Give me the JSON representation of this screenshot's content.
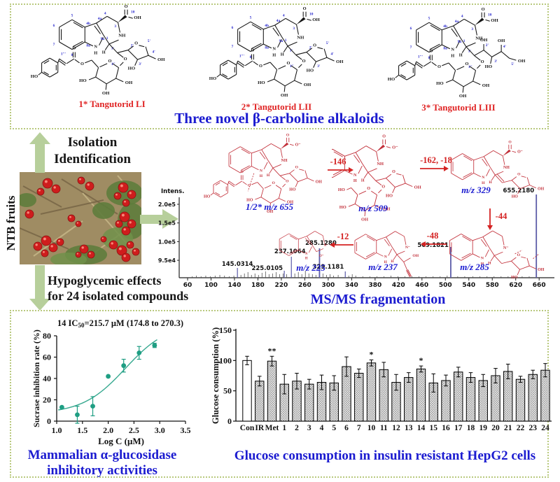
{
  "chem": {
    "o": "O",
    "oh": "OH",
    "ho": "HO",
    "nh": "NH",
    "n": "N",
    "h": "H",
    "o_minus": "O⁻",
    "n_minus": "N⁻",
    "locants": {
      "c5": "5",
      "c6": "6",
      "c7": "7",
      "c8": "8",
      "c8a": "8a",
      "c4b": "4b",
      "c4a": "4a",
      "c9a": "9a",
      "c1": "1",
      "c3": "3",
      "c4": "4",
      "c10": "10",
      "p1": "1'",
      "p2": "2'",
      "p3": "3'",
      "p4": "4'",
      "p5": "5'",
      "s1": "1''",
      "cm1": "1'''"
    }
  },
  "top_panel": {
    "caption": "Three novel β-carboline alkaloids",
    "structures": [
      {
        "label": "1* Tangutorid LI"
      },
      {
        "label": "2* Tangutorid LII"
      },
      {
        "label": "3* Tangutorid LIII"
      }
    ]
  },
  "middle": {
    "ntb_label": "NTB fruits",
    "isolation_line1": "Isolation",
    "isolation_line2": "Identification",
    "hypo_line1": "Hypoglycemic effects",
    "hypo_line2": "for 24 isolated compounds",
    "msms_caption": "MS/MS fragmentation mode",
    "fragment_labels": {
      "f655": "1/2* m/z 655",
      "f509": "m/z 509",
      "f329": "m/z 329",
      "f285": "m/z 285",
      "f237": "m/z 237",
      "f225": "m/z 225"
    },
    "losses": {
      "l146": "-146",
      "l162": "-162, -18",
      "l44": "-44",
      "l48": "-48",
      "l12": "-12"
    }
  },
  "bottom_panel": {
    "left_caption_line1": "Mammalian α-glucosidase",
    "left_caption_line2": "inhibitory activities",
    "right_caption": "Glucose consumption in insulin resistant HepG2 cells"
  },
  "chart_data": [
    {
      "type": "scatter",
      "name": "alpha-glucosidase-inhibition",
      "title_parts": {
        "pre": "14 IC",
        "sub": "50",
        "post": "=215.7 μM (174.8 to 270.3)"
      },
      "xlabel": "Log C (μM)",
      "ylabel": "Sucrase inhibition rate (%)",
      "x": [
        1.1,
        1.4,
        1.7,
        2.0,
        2.3,
        2.6,
        2.9
      ],
      "y": [
        13,
        6,
        14,
        42,
        52,
        64,
        71
      ],
      "yerr": [
        1,
        8,
        9,
        1,
        6,
        6,
        2
      ],
      "xlim": [
        1.0,
        3.5
      ],
      "ylim": [
        0,
        80
      ],
      "xticks": [
        "1.0",
        "1.5",
        "2.0",
        "2.5",
        "3.0",
        "3.5"
      ],
      "yticks": [
        0,
        20,
        40,
        60,
        80
      ],
      "fit": {
        "bottom": 7,
        "top": 92,
        "logIC50": 2.334,
        "hill": 1.05
      },
      "color": "#1f9e83"
    },
    {
      "type": "bar",
      "name": "glucose-consumption",
      "ylabel": "Glucose consumption (%)",
      "ylim": [
        0,
        150
      ],
      "yticks": [
        0,
        50,
        100,
        150
      ],
      "categories": [
        "Con",
        "IR",
        "Met",
        "1",
        "2",
        "3",
        "4",
        "5",
        "6",
        "7",
        "10",
        "11",
        "12",
        "13",
        "14",
        "15",
        "16",
        "17",
        "18",
        "19",
        "20",
        "21",
        "22",
        "23",
        "24"
      ],
      "values": [
        100,
        66,
        99,
        61,
        66,
        61,
        64,
        63,
        90,
        79,
        96,
        85,
        64,
        72,
        86,
        63,
        67,
        81,
        72,
        67,
        75,
        82,
        69,
        77,
        84
      ],
      "errors": [
        7,
        8,
        8,
        16,
        13,
        8,
        12,
        12,
        16,
        7,
        5,
        12,
        13,
        8,
        5,
        15,
        9,
        8,
        8,
        10,
        12,
        12,
        5,
        7,
        11
      ],
      "stars": [
        "",
        "",
        "**",
        "",
        "",
        "",
        "",
        "",
        "",
        "",
        "*",
        "",
        "",
        "",
        "*",
        "",
        "",
        "",
        "",
        "",
        "",
        "",
        "",
        "",
        ""
      ],
      "open_bar_index": 0
    },
    {
      "type": "line",
      "name": "msms-spectrum",
      "ylabel": "Intens.",
      "ytick_labels": [
        "2.0e5",
        "1.5e5",
        "1.0e5",
        "9.5e4"
      ],
      "xticks": [
        60,
        100,
        140,
        180,
        220,
        260,
        300,
        340,
        380,
        420,
        460,
        500,
        540,
        580,
        620,
        660
      ],
      "labeled_peaks": [
        {
          "mz": 145.0314,
          "label": "145.0314",
          "h": 14
        },
        {
          "mz": 225.0105,
          "label": "225.0105",
          "h": 10
        },
        {
          "mz": 237.1064,
          "label": "237.1064",
          "h": 30
        },
        {
          "mz": 285.128,
          "label": "285.1280",
          "h": 42
        },
        {
          "mz": 329.1181,
          "label": "329.1181",
          "h": 9
        },
        {
          "mz": 509.1821,
          "label": "509.1821",
          "h": 44
        },
        {
          "mz": 655.218,
          "label": "655.2180",
          "h": 119
        }
      ],
      "minor_peaks": [
        [
          68,
          2
        ],
        [
          75,
          3
        ],
        [
          83,
          2
        ],
        [
          91,
          3
        ],
        [
          99,
          2
        ],
        [
          107,
          3
        ],
        [
          115,
          4
        ],
        [
          123,
          3
        ],
        [
          131,
          2
        ],
        [
          139,
          3
        ],
        [
          151,
          4
        ],
        [
          157,
          6
        ],
        [
          163,
          8
        ],
        [
          169,
          4
        ],
        [
          175,
          6
        ],
        [
          181,
          4
        ],
        [
          187,
          7
        ],
        [
          193,
          9
        ],
        [
          199,
          5
        ],
        [
          205,
          6
        ],
        [
          211,
          8
        ],
        [
          217,
          5
        ],
        [
          223,
          6
        ],
        [
          229,
          5
        ],
        [
          243,
          6
        ],
        [
          249,
          8
        ],
        [
          255,
          5
        ],
        [
          261,
          10
        ],
        [
          267,
          6
        ],
        [
          273,
          5
        ],
        [
          279,
          4
        ],
        [
          291,
          6
        ],
        [
          297,
          4
        ],
        [
          303,
          5
        ],
        [
          309,
          3
        ],
        [
          317,
          4
        ],
        [
          335,
          3
        ],
        [
          341,
          5
        ],
        [
          347,
          3
        ],
        [
          359,
          2
        ],
        [
          371,
          2
        ],
        [
          383,
          2
        ],
        [
          395,
          2
        ],
        [
          407,
          3
        ],
        [
          419,
          2
        ],
        [
          431,
          2
        ],
        [
          443,
          2
        ],
        [
          455,
          2
        ],
        [
          467,
          2
        ],
        [
          479,
          2
        ],
        [
          491,
          2
        ],
        [
          503,
          3
        ],
        [
          521,
          2
        ],
        [
          533,
          2
        ],
        [
          547,
          2
        ],
        [
          559,
          2
        ],
        [
          571,
          2
        ],
        [
          583,
          2
        ],
        [
          595,
          2
        ],
        [
          607,
          2
        ],
        [
          619,
          2
        ],
        [
          631,
          2
        ],
        [
          643,
          2
        ]
      ]
    }
  ]
}
